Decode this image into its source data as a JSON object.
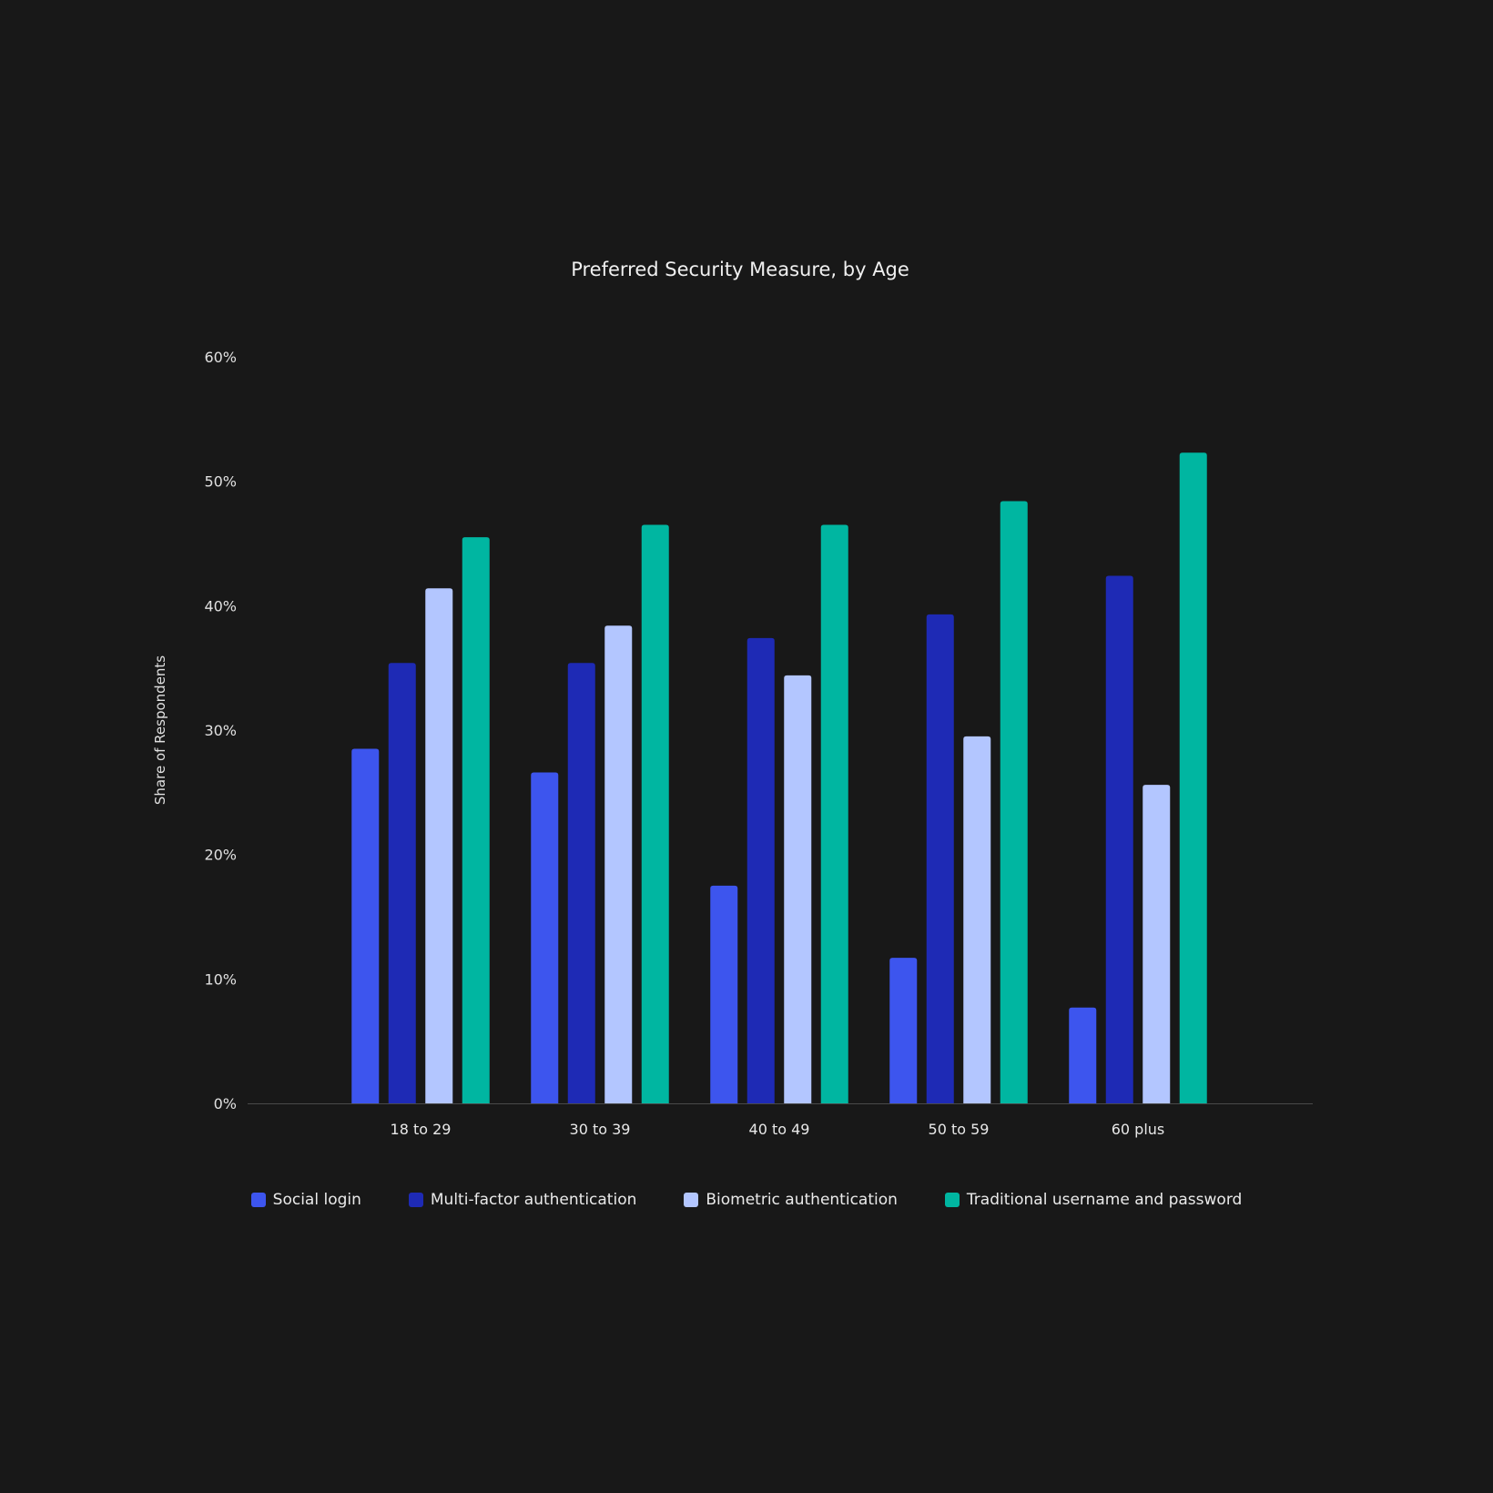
{
  "chart_data": {
    "type": "bar",
    "title": "Preferred Security Measure, by Age",
    "xlabel": "",
    "ylabel": "Share of Respondents",
    "ylim": [
      0,
      60
    ],
    "yticks": [
      0,
      10,
      20,
      30,
      40,
      50,
      60
    ],
    "ytick_labels": [
      "0%",
      "10%",
      "20%",
      "30%",
      "40%",
      "50%",
      "60%"
    ],
    "grid": false,
    "legend_position": "bottom",
    "categories": [
      "18 to 29",
      "30 to 39",
      "40 to 49",
      "50 to 59",
      "60 plus"
    ],
    "series": [
      {
        "name": "Social login",
        "color": "#3D55EE",
        "values": [
          28.5,
          26.6,
          17.5,
          11.7,
          7.7
        ]
      },
      {
        "name": "Multi-factor authentication",
        "color": "#1E2AB5",
        "values": [
          35.4,
          35.4,
          37.4,
          39.3,
          42.4
        ]
      },
      {
        "name": "Biometric authentication",
        "color": "#B3C6FF",
        "values": [
          41.4,
          38.4,
          34.4,
          29.5,
          25.6
        ]
      },
      {
        "name": "Traditional username and password",
        "color": "#00B6A1",
        "values": [
          45.5,
          46.5,
          46.5,
          48.4,
          52.3
        ]
      }
    ]
  }
}
